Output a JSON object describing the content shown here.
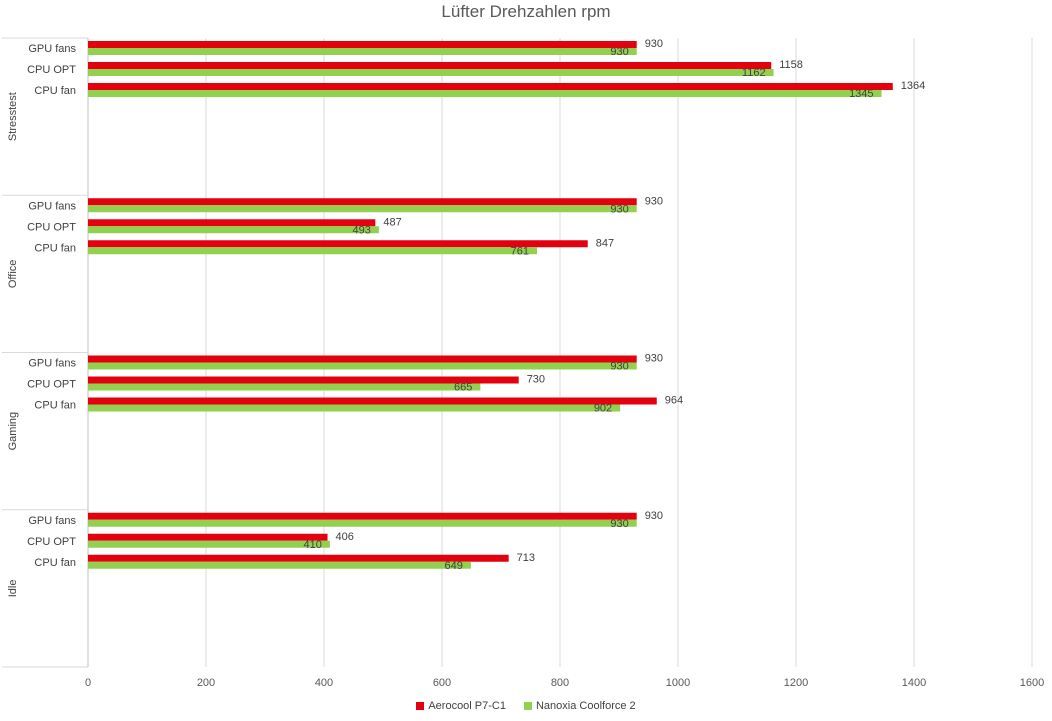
{
  "chart_data": {
    "type": "bar",
    "orientation": "horizontal",
    "title": "Lüfter Drehzahlen rpm",
    "groups": [
      {
        "name": "Stresstest",
        "categories": [
          "GPU fans",
          "CPU OPT",
          "CPU fan"
        ]
      },
      {
        "name": "Office",
        "categories": [
          "GPU fans",
          "CPU OPT",
          "CPU fan"
        ]
      },
      {
        "name": "Gaming",
        "categories": [
          "GPU fans",
          "CPU OPT",
          "CPU fan"
        ]
      },
      {
        "name": "Idle",
        "categories": [
          "GPU fans",
          "CPU OPT",
          "CPU fan"
        ]
      }
    ],
    "series": [
      {
        "name": "Aerocool P7-C1",
        "color": "#e3000f",
        "values": [
          [
            930,
            1158,
            1364
          ],
          [
            930,
            487,
            847
          ],
          [
            930,
            730,
            964
          ],
          [
            930,
            406,
            713
          ]
        ]
      },
      {
        "name": "Nanoxia Coolforce 2",
        "color": "#92d050",
        "values": [
          [
            930,
            1162,
            1345
          ],
          [
            930,
            493,
            761
          ],
          [
            930,
            665,
            902
          ],
          [
            930,
            410,
            649
          ]
        ]
      }
    ],
    "xlim": [
      0,
      1600
    ],
    "xticks": [
      0,
      200,
      400,
      600,
      800,
      1000,
      1200,
      1400,
      1600
    ],
    "grid": true,
    "legend_position": "bottom",
    "xlabel": "",
    "ylabel": ""
  }
}
